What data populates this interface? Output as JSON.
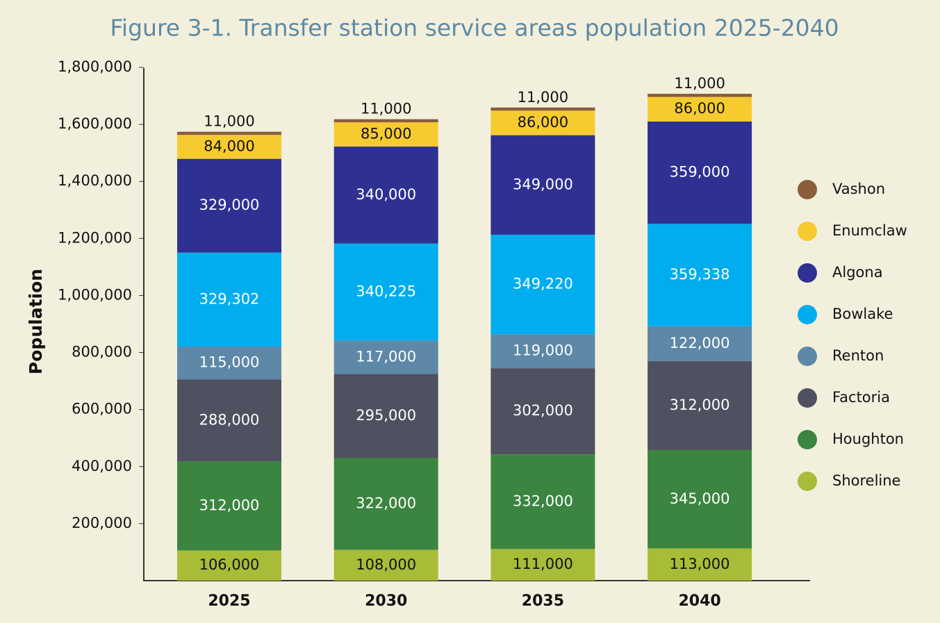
{
  "chart_data": {
    "type": "stacked_bar",
    "title": "Figure 3-1. Transfer station service areas population 2025-2040",
    "y_label": "Population",
    "categories": [
      "2025",
      "2030",
      "2035",
      "2040"
    ],
    "ylim": [
      0,
      1800000
    ],
    "yticks": [
      {
        "value": 200000,
        "label": "200,000"
      },
      {
        "value": 400000,
        "label": "400,000"
      },
      {
        "value": 600000,
        "label": "600,000"
      },
      {
        "value": 800000,
        "label": "800,000"
      },
      {
        "value": 1000000,
        "label": "1,000,000"
      },
      {
        "value": 1200000,
        "label": "1,200,000"
      },
      {
        "value": 1400000,
        "label": "1,400,000"
      },
      {
        "value": 1600000,
        "label": "1,600,000"
      },
      {
        "value": 1800000,
        "label": "1,800,000"
      }
    ],
    "legend": "right",
    "series": [
      {
        "name": "Shoreline",
        "color": "#a8bc38",
        "values": [
          106000,
          108000,
          111000,
          113000
        ],
        "value_labels": [
          "106,000",
          "108,000",
          "111,000",
          "113,000"
        ]
      },
      {
        "name": "Houghton",
        "color": "#3b8541",
        "values": [
          312000,
          322000,
          332000,
          345000
        ],
        "value_labels": [
          "312,000",
          "322,000",
          "332,000",
          "345,000"
        ]
      },
      {
        "name": "Factoria",
        "color": "#4f5060",
        "values": [
          288000,
          295000,
          302000,
          312000
        ],
        "value_labels": [
          "288,000",
          "295,000",
          "302,000",
          "312,000"
        ]
      },
      {
        "name": "Renton",
        "color": "#5d88a7",
        "values": [
          115000,
          117000,
          119000,
          122000
        ],
        "value_labels": [
          "115,000",
          "117,000",
          "119,000",
          "122,000"
        ]
      },
      {
        "name": "Bowlake",
        "color": "#00adee",
        "values": [
          329302,
          340225,
          349220,
          359338
        ],
        "value_labels": [
          "329,302",
          "340,225",
          "349,220",
          "359,338"
        ]
      },
      {
        "name": "Algona",
        "color": "#2e3192",
        "values": [
          329000,
          340000,
          349000,
          359000
        ],
        "value_labels": [
          "329,000",
          "340,000",
          "349,000",
          "359,000"
        ]
      },
      {
        "name": "Enumclaw",
        "color": "#f6cb30",
        "values": [
          84000,
          85000,
          86000,
          86000
        ],
        "value_labels": [
          "84,000",
          "85,000",
          "86,000",
          "86,000"
        ]
      },
      {
        "name": "Vashon",
        "color": "#8a5d3b",
        "values": [
          11000,
          11000,
          11000,
          11000
        ],
        "value_labels": [
          "11,000",
          "11,000",
          "11,000",
          "11,000"
        ]
      }
    ]
  }
}
